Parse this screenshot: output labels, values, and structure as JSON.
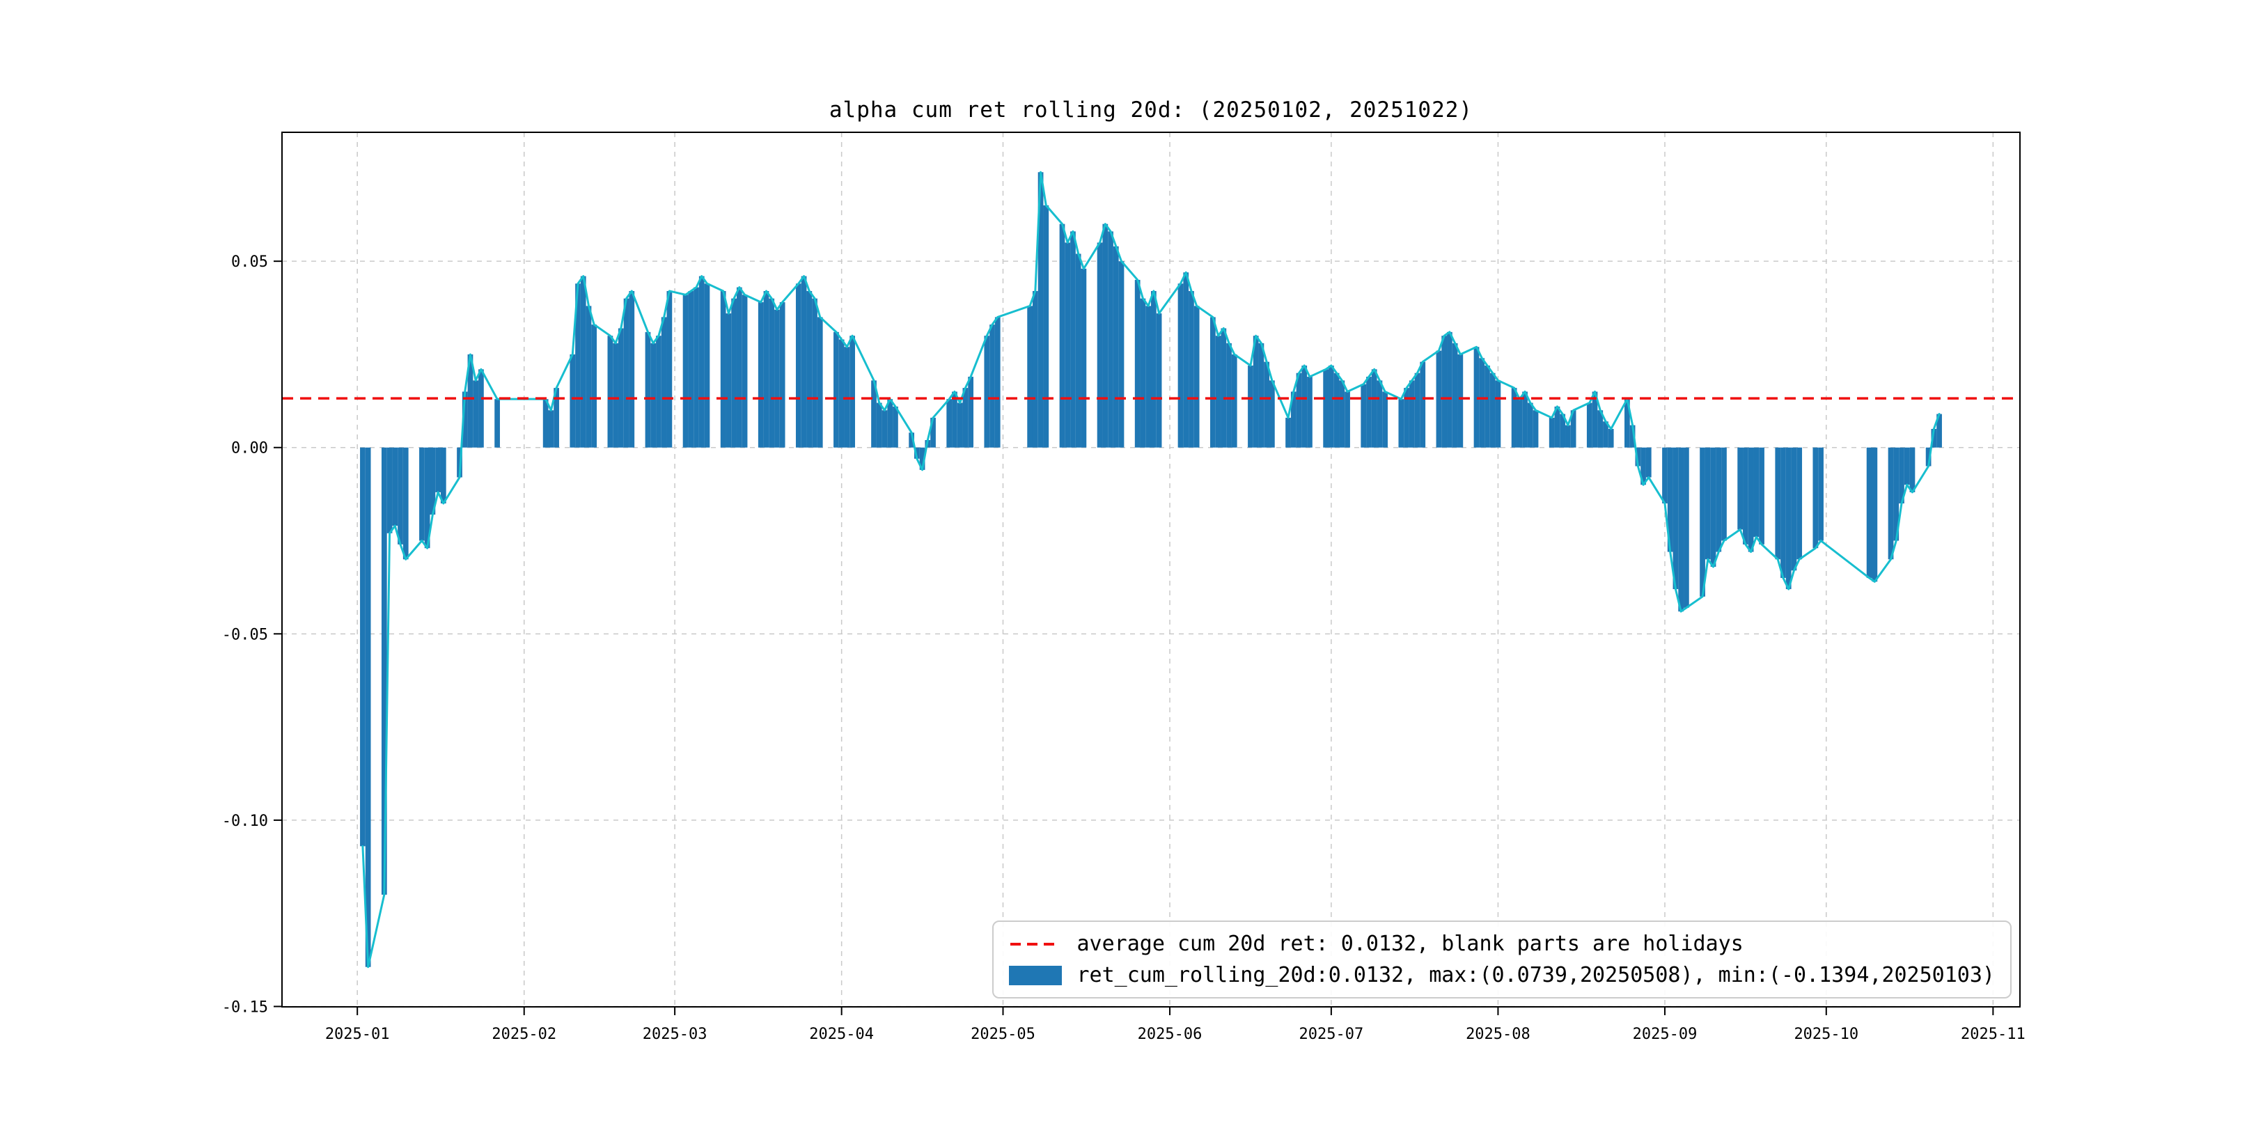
{
  "chart": {
    "title": "alpha cum ret rolling 20d: (20250102, 20251022)",
    "legend": {
      "avg_label": "average cum 20d ret: 0.0132, blank parts are holidays",
      "series_label": "ret_cum_rolling_20d:0.0132, max:(0.0739,20250508), min:(-0.1394,20250103)"
    }
  },
  "chart_data": {
    "type": "bar",
    "title": "alpha cum ret rolling 20d: (20250102, 20251022)",
    "series_name": "ret_cum_rolling_20d",
    "average": 0.0132,
    "max": {
      "value": 0.0739,
      "date": "2025-05-08"
    },
    "min": {
      "value": -0.1394,
      "date": "2025-01-03"
    },
    "note": "blank parts are holidays",
    "grid": true,
    "legend_position": "lower right",
    "ylim": [
      -0.1501,
      0.0846
    ],
    "xlim": [
      "2024-12-18",
      "2025-11-06"
    ],
    "y_ticks": [
      {
        "v": 0.05,
        "label": "0.05"
      },
      {
        "v": 0.0,
        "label": "0.00"
      },
      {
        "v": -0.05,
        "label": "-0.05"
      },
      {
        "v": -0.1,
        "label": "-0.10"
      },
      {
        "v": -0.15,
        "label": "-0.15"
      }
    ],
    "x_ticks": [
      {
        "date": "2025-01-01",
        "label": "2025-01"
      },
      {
        "date": "2025-02-01",
        "label": "2025-02"
      },
      {
        "date": "2025-03-01",
        "label": "2025-03"
      },
      {
        "date": "2025-04-01",
        "label": "2025-04"
      },
      {
        "date": "2025-05-01",
        "label": "2025-05"
      },
      {
        "date": "2025-06-01",
        "label": "2025-06"
      },
      {
        "date": "2025-07-01",
        "label": "2025-07"
      },
      {
        "date": "2025-08-01",
        "label": "2025-08"
      },
      {
        "date": "2025-09-01",
        "label": "2025-09"
      },
      {
        "date": "2025-10-01",
        "label": "2025-10"
      },
      {
        "date": "2025-11-01",
        "label": "2025-11"
      }
    ],
    "colors": {
      "bar": "#1f77b4",
      "line": "#17becf",
      "avg": "#f01010",
      "grid": "#c9c9c9",
      "spine": "#000000"
    },
    "points": [
      [
        "2025-01-02",
        -0.107
      ],
      [
        "2025-01-03",
        -0.1394
      ],
      [
        "2025-01-06",
        -0.12
      ],
      [
        "2025-01-07",
        -0.023
      ],
      [
        "2025-01-08",
        -0.021
      ],
      [
        "2025-01-09",
        -0.026
      ],
      [
        "2025-01-10",
        -0.03
      ],
      [
        "2025-01-13",
        -0.025
      ],
      [
        "2025-01-14",
        -0.027
      ],
      [
        "2025-01-15",
        -0.018
      ],
      [
        "2025-01-16",
        -0.012
      ],
      [
        "2025-01-17",
        -0.015
      ],
      [
        "2025-01-20",
        -0.008
      ],
      [
        "2025-01-21",
        0.015
      ],
      [
        "2025-01-22",
        0.025
      ],
      [
        "2025-01-23",
        0.018
      ],
      [
        "2025-01-24",
        0.021
      ],
      [
        "2025-01-27",
        0.013
      ],
      [
        "2025-02-05",
        0.013
      ],
      [
        "2025-02-06",
        0.01
      ],
      [
        "2025-02-07",
        0.016
      ],
      [
        "2025-02-10",
        0.025
      ],
      [
        "2025-02-11",
        0.044
      ],
      [
        "2025-02-12",
        0.046
      ],
      [
        "2025-02-13",
        0.038
      ],
      [
        "2025-02-14",
        0.033
      ],
      [
        "2025-02-17",
        0.03
      ],
      [
        "2025-02-18",
        0.028
      ],
      [
        "2025-02-19",
        0.032
      ],
      [
        "2025-02-20",
        0.04
      ],
      [
        "2025-02-21",
        0.042
      ],
      [
        "2025-02-24",
        0.031
      ],
      [
        "2025-02-25",
        0.028
      ],
      [
        "2025-02-26",
        0.03
      ],
      [
        "2025-02-27",
        0.035
      ],
      [
        "2025-02-28",
        0.042
      ],
      [
        "2025-03-03",
        0.041
      ],
      [
        "2025-03-04",
        0.042
      ],
      [
        "2025-03-05",
        0.043
      ],
      [
        "2025-03-06",
        0.046
      ],
      [
        "2025-03-07",
        0.044
      ],
      [
        "2025-03-10",
        0.042
      ],
      [
        "2025-03-11",
        0.036
      ],
      [
        "2025-03-12",
        0.04
      ],
      [
        "2025-03-13",
        0.043
      ],
      [
        "2025-03-14",
        0.041
      ],
      [
        "2025-03-17",
        0.039
      ],
      [
        "2025-03-18",
        0.042
      ],
      [
        "2025-03-19",
        0.04
      ],
      [
        "2025-03-20",
        0.037
      ],
      [
        "2025-03-21",
        0.039
      ],
      [
        "2025-03-24",
        0.044
      ],
      [
        "2025-03-25",
        0.046
      ],
      [
        "2025-03-26",
        0.042
      ],
      [
        "2025-03-27",
        0.04
      ],
      [
        "2025-03-28",
        0.035
      ],
      [
        "2025-03-31",
        0.031
      ],
      [
        "2025-04-01",
        0.029
      ],
      [
        "2025-04-02",
        0.027
      ],
      [
        "2025-04-03",
        0.03
      ],
      [
        "2025-04-07",
        0.018
      ],
      [
        "2025-04-08",
        0.012
      ],
      [
        "2025-04-09",
        0.01
      ],
      [
        "2025-04-10",
        0.013
      ],
      [
        "2025-04-11",
        0.011
      ],
      [
        "2025-04-14",
        0.004
      ],
      [
        "2025-04-15",
        -0.003
      ],
      [
        "2025-04-16",
        -0.006
      ],
      [
        "2025-04-17",
        0.002
      ],
      [
        "2025-04-18",
        0.008
      ],
      [
        "2025-04-21",
        0.013
      ],
      [
        "2025-04-22",
        0.015
      ],
      [
        "2025-04-23",
        0.012
      ],
      [
        "2025-04-24",
        0.016
      ],
      [
        "2025-04-25",
        0.019
      ],
      [
        "2025-04-28",
        0.03
      ],
      [
        "2025-04-29",
        0.033
      ],
      [
        "2025-04-30",
        0.035
      ],
      [
        "2025-05-06",
        0.038
      ],
      [
        "2025-05-07",
        0.042
      ],
      [
        "2025-05-08",
        0.0739
      ],
      [
        "2025-05-09",
        0.065
      ],
      [
        "2025-05-12",
        0.06
      ],
      [
        "2025-05-13",
        0.055
      ],
      [
        "2025-05-14",
        0.058
      ],
      [
        "2025-05-15",
        0.052
      ],
      [
        "2025-05-16",
        0.048
      ],
      [
        "2025-05-19",
        0.055
      ],
      [
        "2025-05-20",
        0.06
      ],
      [
        "2025-05-21",
        0.058
      ],
      [
        "2025-05-22",
        0.054
      ],
      [
        "2025-05-23",
        0.05
      ],
      [
        "2025-05-26",
        0.045
      ],
      [
        "2025-05-27",
        0.04
      ],
      [
        "2025-05-28",
        0.038
      ],
      [
        "2025-05-29",
        0.042
      ],
      [
        "2025-05-30",
        0.036
      ],
      [
        "2025-06-03",
        0.044
      ],
      [
        "2025-06-04",
        0.047
      ],
      [
        "2025-06-05",
        0.042
      ],
      [
        "2025-06-06",
        0.038
      ],
      [
        "2025-06-09",
        0.035
      ],
      [
        "2025-06-10",
        0.03
      ],
      [
        "2025-06-11",
        0.032
      ],
      [
        "2025-06-12",
        0.028
      ],
      [
        "2025-06-13",
        0.025
      ],
      [
        "2025-06-16",
        0.022
      ],
      [
        "2025-06-17",
        0.03
      ],
      [
        "2025-06-18",
        0.028
      ],
      [
        "2025-06-19",
        0.023
      ],
      [
        "2025-06-20",
        0.018
      ],
      [
        "2025-06-23",
        0.008
      ],
      [
        "2025-06-24",
        0.015
      ],
      [
        "2025-06-25",
        0.02
      ],
      [
        "2025-06-26",
        0.022
      ],
      [
        "2025-06-27",
        0.019
      ],
      [
        "2025-06-30",
        0.021
      ],
      [
        "2025-07-01",
        0.022
      ],
      [
        "2025-07-02",
        0.02
      ],
      [
        "2025-07-03",
        0.018
      ],
      [
        "2025-07-04",
        0.015
      ],
      [
        "2025-07-07",
        0.017
      ],
      [
        "2025-07-08",
        0.019
      ],
      [
        "2025-07-09",
        0.021
      ],
      [
        "2025-07-10",
        0.018
      ],
      [
        "2025-07-11",
        0.015
      ],
      [
        "2025-07-14",
        0.013
      ],
      [
        "2025-07-15",
        0.016
      ],
      [
        "2025-07-16",
        0.018
      ],
      [
        "2025-07-17",
        0.02
      ],
      [
        "2025-07-18",
        0.023
      ],
      [
        "2025-07-21",
        0.026
      ],
      [
        "2025-07-22",
        0.03
      ],
      [
        "2025-07-23",
        0.031
      ],
      [
        "2025-07-24",
        0.028
      ],
      [
        "2025-07-25",
        0.025
      ],
      [
        "2025-07-28",
        0.027
      ],
      [
        "2025-07-29",
        0.024
      ],
      [
        "2025-07-30",
        0.022
      ],
      [
        "2025-07-31",
        0.02
      ],
      [
        "2025-08-01",
        0.018
      ],
      [
        "2025-08-04",
        0.016
      ],
      [
        "2025-08-05",
        0.013
      ],
      [
        "2025-08-06",
        0.015
      ],
      [
        "2025-08-07",
        0.012
      ],
      [
        "2025-08-08",
        0.01
      ],
      [
        "2025-08-11",
        0.008
      ],
      [
        "2025-08-12",
        0.011
      ],
      [
        "2025-08-13",
        0.009
      ],
      [
        "2025-08-14",
        0.006
      ],
      [
        "2025-08-15",
        0.01
      ],
      [
        "2025-08-18",
        0.012
      ],
      [
        "2025-08-19",
        0.015
      ],
      [
        "2025-08-20",
        0.01
      ],
      [
        "2025-08-21",
        0.007
      ],
      [
        "2025-08-22",
        0.005
      ],
      [
        "2025-08-25",
        0.013
      ],
      [
        "2025-08-26",
        0.006
      ],
      [
        "2025-08-27",
        -0.005
      ],
      [
        "2025-08-28",
        -0.01
      ],
      [
        "2025-08-29",
        -0.008
      ],
      [
        "2025-09-01",
        -0.015
      ],
      [
        "2025-09-02",
        -0.028
      ],
      [
        "2025-09-03",
        -0.038
      ],
      [
        "2025-09-04",
        -0.044
      ],
      [
        "2025-09-05",
        -0.043
      ],
      [
        "2025-09-08",
        -0.04
      ],
      [
        "2025-09-09",
        -0.03
      ],
      [
        "2025-09-10",
        -0.032
      ],
      [
        "2025-09-11",
        -0.028
      ],
      [
        "2025-09-12",
        -0.025
      ],
      [
        "2025-09-15",
        -0.022
      ],
      [
        "2025-09-16",
        -0.026
      ],
      [
        "2025-09-17",
        -0.028
      ],
      [
        "2025-09-18",
        -0.024
      ],
      [
        "2025-09-19",
        -0.026
      ],
      [
        "2025-09-22",
        -0.03
      ],
      [
        "2025-09-23",
        -0.035
      ],
      [
        "2025-09-24",
        -0.038
      ],
      [
        "2025-09-25",
        -0.033
      ],
      [
        "2025-09-26",
        -0.03
      ],
      [
        "2025-09-29",
        -0.027
      ],
      [
        "2025-09-30",
        -0.025
      ],
      [
        "2025-10-09",
        -0.035
      ],
      [
        "2025-10-10",
        -0.036
      ],
      [
        "2025-10-13",
        -0.03
      ],
      [
        "2025-10-14",
        -0.025
      ],
      [
        "2025-10-15",
        -0.015
      ],
      [
        "2025-10-16",
        -0.01
      ],
      [
        "2025-10-17",
        -0.012
      ],
      [
        "2025-10-20",
        -0.005
      ],
      [
        "2025-10-21",
        0.005
      ],
      [
        "2025-10-22",
        0.009
      ]
    ]
  }
}
